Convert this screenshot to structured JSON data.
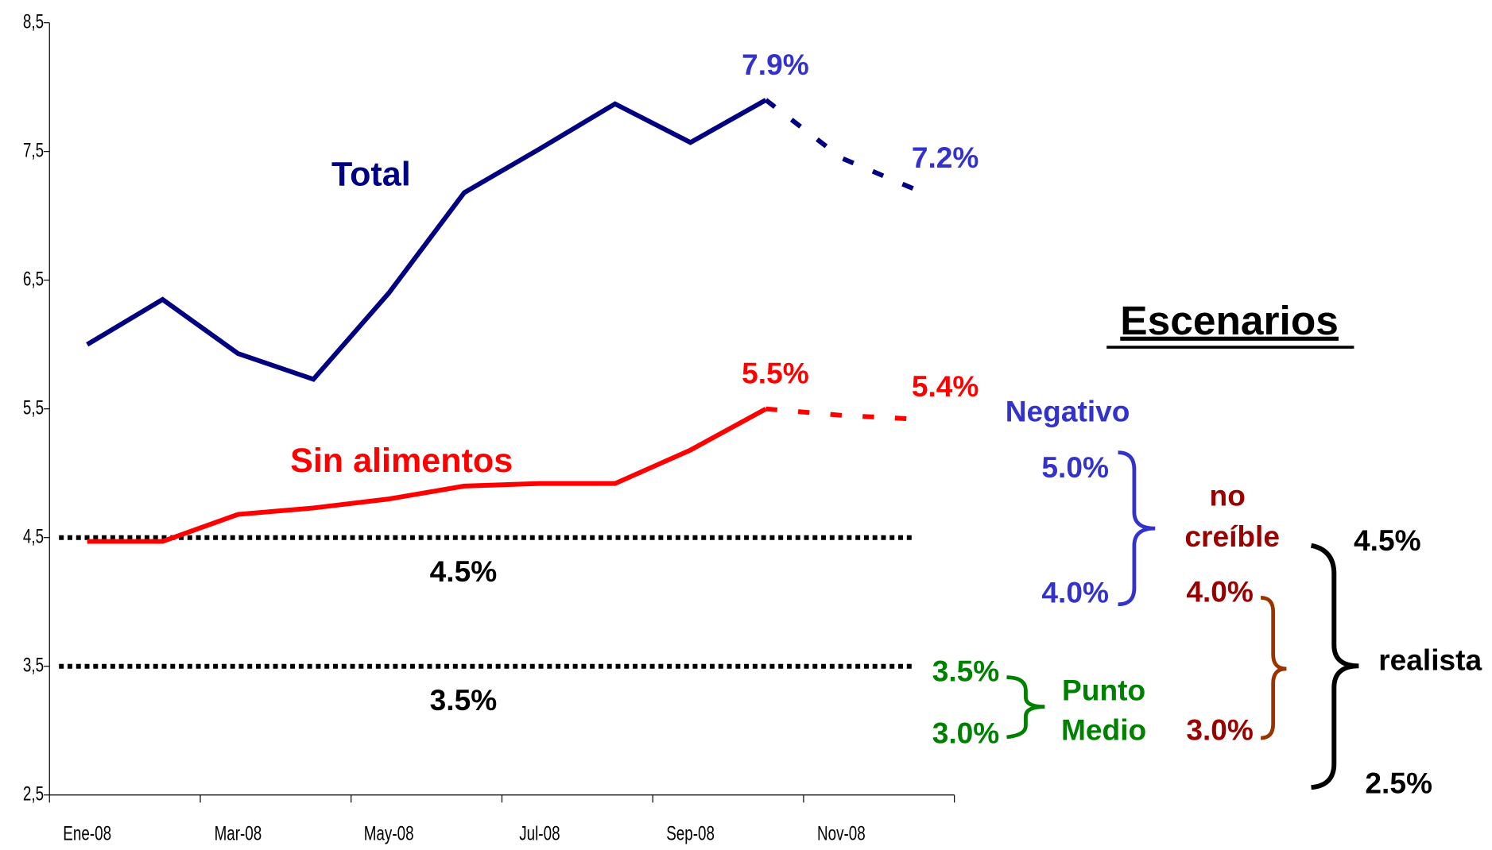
{
  "chart_data": {
    "type": "line",
    "categories": [
      "Ene-08",
      null,
      "Mar-08",
      null,
      "May-08",
      null,
      "Jul-08",
      null,
      "Sep-08",
      null,
      "Nov-08",
      null
    ],
    "series": [
      {
        "name": "Total",
        "color": "#000080",
        "values": [
          6.0,
          6.35,
          5.93,
          5.73,
          6.4,
          7.18,
          7.52,
          7.87,
          7.57,
          7.9,
          null,
          null
        ]
      },
      {
        "name": "Total",
        "color": "#000080",
        "dashed": true,
        "values": [
          null,
          null,
          null,
          null,
          null,
          null,
          null,
          null,
          null,
          7.9,
          7.45,
          7.2
        ],
        "value_labels": [
          null,
          null,
          null,
          null,
          null,
          null,
          null,
          null,
          null,
          "7.9%",
          null,
          "7.2%"
        ]
      },
      {
        "name": "Sin alimentos",
        "color": "#ff0000",
        "values": [
          4.47,
          4.47,
          4.68,
          4.73,
          4.8,
          4.9,
          4.92,
          4.92,
          5.18,
          5.5,
          null,
          null
        ]
      },
      {
        "name": "Sin alimentos",
        "color": "#ff0000",
        "dashed": true,
        "values": [
          null,
          null,
          null,
          null,
          null,
          null,
          null,
          null,
          null,
          5.5,
          5.45,
          5.42
        ],
        "value_labels": [
          null,
          null,
          null,
          null,
          null,
          null,
          null,
          null,
          null,
          "5.5%",
          null,
          "5.4%"
        ]
      }
    ],
    "reference_lines": [
      {
        "value": 4.5,
        "label": "4.5%"
      },
      {
        "value": 3.5,
        "label": "3.5%"
      }
    ],
    "ylim": [
      2.5,
      8.5
    ],
    "yticks": [
      {
        "value": 2.5,
        "label": "2,5"
      },
      {
        "value": 3.5,
        "label": "3,5"
      },
      {
        "value": 4.5,
        "label": "4,5"
      },
      {
        "value": 5.5,
        "label": "5,5"
      },
      {
        "value": 6.5,
        "label": "6,5"
      },
      {
        "value": 7.5,
        "label": "7,5"
      },
      {
        "value": 8.5,
        "label": "8,5"
      }
    ]
  },
  "scenarios": {
    "title": "Escenarios",
    "negativo": {
      "name": "Negativo",
      "high": "5.0%",
      "low": "4.0%"
    },
    "no_creible": {
      "name": [
        "no",
        "creíble"
      ],
      "high": "4.0%",
      "low": "3.0%"
    },
    "realista": {
      "name": "realista",
      "high": "4.5%",
      "low": "2.5%"
    },
    "punto_medio": {
      "name": [
        "Punto",
        "Medio"
      ],
      "high": "3.5%",
      "low": "3.0%"
    }
  }
}
